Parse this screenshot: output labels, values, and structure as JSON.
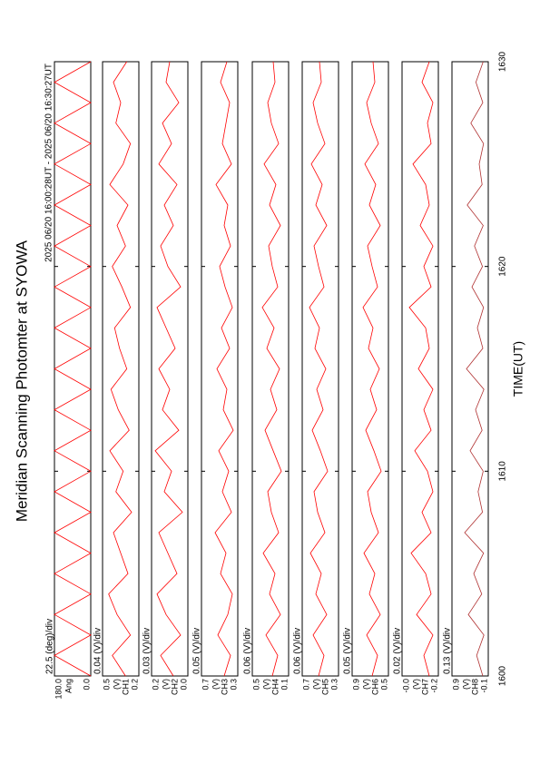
{
  "chart_data": [
    {
      "type": "line",
      "title": "Meridian Scanning Photomter at SYOWA",
      "subtitle": "2025 06/20 16:00:28UT - 2025 06/20 16:30:27UT",
      "scale": "22.5 (deg)/div",
      "unit": "Ang",
      "color": "#ff0000",
      "x": [
        1600,
        1601,
        1602,
        1603,
        1604,
        1605,
        1606,
        1607,
        1608,
        1609,
        1610,
        1611,
        1612,
        1613,
        1614,
        1615,
        1616,
        1617,
        1618,
        1619,
        1620,
        1621,
        1622,
        1623,
        1624,
        1625,
        1626,
        1627,
        1628,
        1629,
        1630
      ],
      "values": [
        0,
        180,
        0,
        180,
        0,
        180,
        0,
        180,
        0,
        180,
        0,
        180,
        0,
        180,
        0,
        180,
        0,
        180,
        0,
        180,
        0,
        180,
        0,
        180,
        0,
        180,
        0,
        180,
        0,
        180,
        0
      ],
      "ylim": [
        0,
        180
      ],
      "yticks": [
        {
          "value": 180,
          "label": "180.0"
        },
        {
          "value": 0,
          "label": "0.0"
        }
      ]
    },
    {
      "type": "line",
      "scale": "0.04 (V)/div",
      "unit": "(V)",
      "channel": "CH1",
      "color": "#ff0000",
      "values": [
        0.31,
        0.42,
        0.27,
        0.38,
        0.45,
        0.29,
        0.35,
        0.41,
        0.26,
        0.39,
        0.33,
        0.44,
        0.28,
        0.37,
        0.43,
        0.3,
        0.36,
        0.4,
        0.27,
        0.34,
        0.42,
        0.31,
        0.38,
        0.29,
        0.44,
        0.33,
        0.27,
        0.39,
        0.35,
        0.41,
        0.3
      ],
      "ylim": [
        0.2,
        0.5
      ],
      "yticks": [
        0.5,
        0.2
      ]
    },
    {
      "type": "line",
      "scale": "0.03 (V)/div",
      "unit": "(V)",
      "channel": "CH2",
      "color": "#ff0000",
      "values": [
        0.08,
        0.15,
        0.04,
        0.12,
        0.17,
        0.06,
        0.11,
        0.16,
        0.03,
        0.13,
        0.09,
        0.18,
        0.05,
        0.14,
        0.1,
        0.16,
        0.07,
        0.12,
        0.17,
        0.04,
        0.11,
        0.15,
        0.08,
        0.13,
        0.06,
        0.16,
        0.09,
        0.14,
        0.05,
        0.12,
        0.1
      ],
      "ylim": [
        0,
        0.2
      ],
      "yticks": [
        0.2,
        {
          "value": 0,
          "label": "0.0"
        }
      ]
    },
    {
      "type": "line",
      "scale": "0.05 (V)/div",
      "unit": "(V)",
      "channel": "CH3",
      "color": "#ff0000",
      "values": [
        0.45,
        0.38,
        0.52,
        0.41,
        0.36,
        0.49,
        0.43,
        0.55,
        0.37,
        0.47,
        0.4,
        0.51,
        0.35,
        0.46,
        0.42,
        0.53,
        0.39,
        0.48,
        0.36,
        0.44,
        0.5,
        0.38,
        0.45,
        0.41,
        0.54,
        0.37,
        0.47,
        0.43,
        0.39,
        0.49,
        0.42
      ],
      "ylim": [
        0.3,
        0.7
      ],
      "yticks": [
        0.7,
        0.3
      ]
    },
    {
      "type": "line",
      "scale": "0.06 (V)/div",
      "unit": "(V)",
      "channel": "CH4",
      "color": "#ff0000",
      "values": [
        0.28,
        0.22,
        0.35,
        0.19,
        0.31,
        0.25,
        0.38,
        0.21,
        0.29,
        0.33,
        0.18,
        0.27,
        0.36,
        0.23,
        0.3,
        0.2,
        0.34,
        0.26,
        0.39,
        0.22,
        0.28,
        0.32,
        0.19,
        0.31,
        0.24,
        0.37,
        0.21,
        0.29,
        0.33,
        0.25,
        0.27
      ],
      "ylim": [
        0.1,
        0.5
      ],
      "yticks": [
        0.5,
        0.1
      ]
    },
    {
      "type": "line",
      "scale": "0.06 (V)/div",
      "unit": "(V)",
      "channel": "CH5",
      "color": "#ff0000",
      "values": [
        0.52,
        0.46,
        0.58,
        0.43,
        0.55,
        0.49,
        0.61,
        0.45,
        0.53,
        0.57,
        0.42,
        0.5,
        0.59,
        0.47,
        0.54,
        0.44,
        0.56,
        0.51,
        0.62,
        0.46,
        0.52,
        0.57,
        0.43,
        0.55,
        0.48,
        0.6,
        0.45,
        0.53,
        0.58,
        0.49,
        0.51
      ],
      "ylim": [
        0.3,
        0.7
      ],
      "yticks": [
        0.7,
        0.3
      ]
    },
    {
      "type": "line",
      "scale": "0.05 (V)/div",
      "unit": "(V)",
      "channel": "CH6",
      "color": "#ff0000",
      "values": [
        0.68,
        0.62,
        0.74,
        0.59,
        0.71,
        0.65,
        0.77,
        0.61,
        0.69,
        0.73,
        0.58,
        0.66,
        0.75,
        0.63,
        0.7,
        0.6,
        0.72,
        0.67,
        0.78,
        0.62,
        0.68,
        0.73,
        0.59,
        0.71,
        0.64,
        0.76,
        0.61,
        0.69,
        0.74,
        0.65,
        0.67
      ],
      "ylim": [
        0.5,
        0.9
      ],
      "yticks": [
        0.9,
        0.5
      ]
    },
    {
      "type": "line",
      "scale": "0.02 (V)/div",
      "unit": "(V)",
      "channel": "CH7",
      "color": "#ff0000",
      "values": [
        -0.15,
        -0.12,
        -0.17,
        -0.08,
        -0.16,
        -0.13,
        -0.05,
        -0.16,
        -0.11,
        -0.17,
        -0.14,
        -0.07,
        -0.16,
        -0.12,
        -0.17,
        -0.09,
        -0.15,
        -0.13,
        -0.04,
        -0.16,
        -0.12,
        -0.17,
        -0.1,
        -0.15,
        -0.13,
        -0.06,
        -0.16,
        -0.14,
        -0.17,
        -0.11,
        -0.15
      ],
      "ylim": [
        -0.2,
        0
      ],
      "yticks": [
        {
          "value": 0,
          "label": "-0.0"
        },
        -0.2
      ]
    },
    {
      "type": "line",
      "scale": "0.13 (V)/div",
      "unit": "(V)",
      "channel": "CH8",
      "color": "#b03030",
      "values": [
        0.05,
        0.22,
        0.02,
        0.45,
        0.08,
        0.3,
        0.03,
        0.55,
        0.06,
        0.18,
        0.04,
        0.4,
        0.07,
        0.25,
        0.02,
        0.5,
        0.05,
        0.2,
        0.03,
        0.35,
        0.06,
        0.28,
        0.04,
        0.48,
        0.07,
        0.15,
        0.03,
        0.38,
        0.05,
        0.24,
        0.04
      ],
      "ylim": [
        -0.1,
        0.9
      ],
      "yticks": [
        0.9,
        -0.1
      ],
      "x_label": "TIME(UT)",
      "xlim": [
        1600,
        1630
      ],
      "xticks": [
        1600,
        1610,
        1620,
        1630
      ]
    }
  ]
}
